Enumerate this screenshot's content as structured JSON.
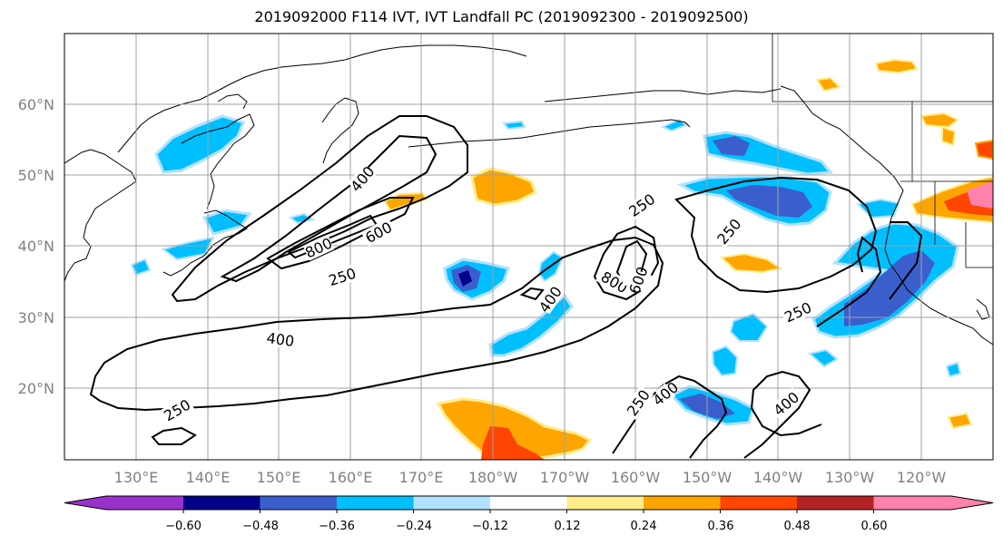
{
  "title": "2019092000 F114 IVT, IVT Landfall PC (2019092300 - 2019092500)",
  "map": {
    "lat_labels": [
      "60°N",
      "50°N",
      "40°N",
      "30°N",
      "20°N"
    ],
    "lon_labels": [
      "130°E",
      "140°E",
      "150°E",
      "160°E",
      "170°E",
      "180°W",
      "170°W",
      "160°W",
      "150°W",
      "140°W",
      "130°W",
      "120°W"
    ],
    "contour_labels": [
      "400",
      "800",
      "600",
      "250",
      "250",
      "400",
      "800",
      "600",
      "400",
      "250",
      "250",
      "250",
      "400",
      "400",
      "250"
    ]
  },
  "colorbar": {
    "ticks": [
      "−0.60",
      "−0.48",
      "−0.36",
      "−0.24",
      "−0.12",
      "0.12",
      "0.24",
      "0.36",
      "0.48",
      "0.60"
    ],
    "colors": [
      "#9932cc",
      "#00008b",
      "#3a5fcd",
      "#00bfff",
      "#b0e2ff",
      "#ffffff",
      "#ffec8b",
      "#ffa500",
      "#ff4500",
      "#b22222",
      "#ff82ab"
    ]
  }
}
